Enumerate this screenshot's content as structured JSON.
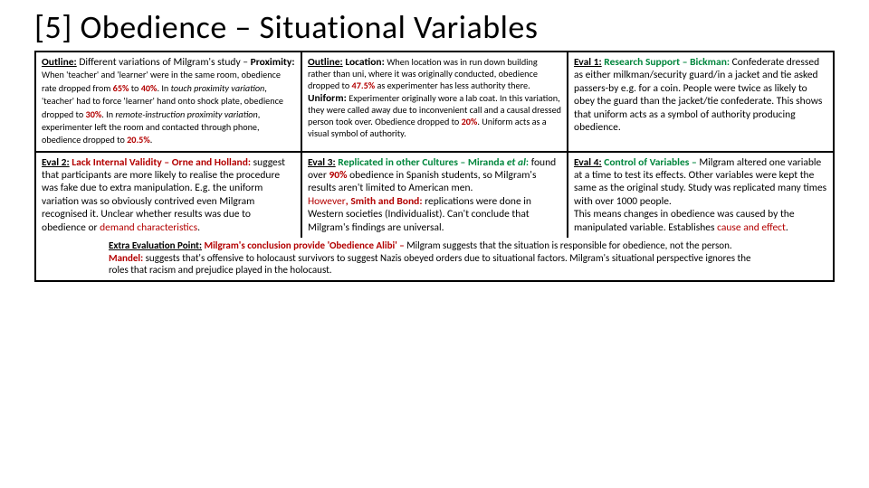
{
  "title": "[5] Obedience – Situational Variables",
  "r1c1": {
    "head": "Outline:",
    "p1a": " Different variations of Milgram's study – ",
    "p1b": "Proximity: ",
    "p1c": "When 'teacher' and 'learner' were in the same room, obedience rate dropped from ",
    "n1": "65%",
    "p1d": " to ",
    "n2": "40%",
    "p1e": ". In ",
    "it1": "touch proximity variation",
    "p1f": ", 'teacher' had to force 'learner' hand onto shock plate, obedience dropped to ",
    "n3": "30%",
    "p1g": ". In ",
    "it2": "remote-instruction proximity variation",
    "p1h": ", experimenter left the room and contacted through phone, obedience dropped to ",
    "n4": "20.5%",
    "p1i": "."
  },
  "r1c2": {
    "head": "Outline:",
    "t1": " Location: ",
    "p1a": "When location was in run down building rather than uni, where it was originally conducted, obedience dropped to ",
    "n1": "47.5%",
    "p1b": " as experimenter has less authority there.",
    "t2": "Uniform: ",
    "p2a": "Experimenter originally wore a lab coat. In this variation, they were called away due to inconvenient call and a causal dressed person took over. Obedience dropped to ",
    "n2": "20%",
    "p2b": ". Uniform acts as a visual symbol of authority."
  },
  "r1c3": {
    "head": "Eval 1:",
    "t": " Research Support – Bickman:",
    "p": " Confederate dressed as either milkman/security guard/in a jacket and tie asked passers-by e.g. for a coin. People were twice as likely to obey the guard than the jacket/tie confederate. This shows that uniform acts as a symbol of authority producing obedience."
  },
  "r2c1": {
    "head": "Eval 2:",
    "t": " Lack Internal Validity – Orne and Holland: ",
    "p1": "suggest that participants are more likely to realise the procedure was fake due to extra manipulation. E.g. the uniform variation was so obviously contrived even Milgram recognised it. Unclear whether results was due to obedience or ",
    "hl": "demand characteristics",
    "p2": "."
  },
  "r2c2": {
    "head": "Eval 3:",
    "t1": " Replicated in other Cultures – Miranda ",
    "it": "et al",
    "t2": ": ",
    "p1": "found over ",
    "n1": "90%",
    "p2": " obedience in Spanish students, so Milgram's results aren't limited to American men.",
    "how": "However",
    "t3": ", Smith and Bond: ",
    "p3": "replications were done in Western societies (Individualist). Can't conclude that Milgram's findings are universal."
  },
  "r2c3": {
    "head": "Eval 4:",
    "t": " Control of Variables – ",
    "p1": "Milgram altered one variable at a time to test its effects. Other variables were kept the same as the original study. Study was replicated many times with over 1000 people.",
    "p2": "This means changes in obedience was caused by the manipulated variable. Establishes ",
    "hl": "cause and effect",
    "p3": "."
  },
  "extra": {
    "head": "Extra Evaluation Point:",
    "t1": " Milgram's conclusion provide 'Obedience Alibi' – ",
    "p1": "Milgram suggests that the situation is responsible for obedience, not the person. ",
    "t2": "Mandel: ",
    "p2": "suggests that's offensive to holocaust survivors to suggest Nazis obeyed orders due to situational factors. Milgram's situational perspective ignores the roles that racism and prejudice played in the holocaust."
  }
}
